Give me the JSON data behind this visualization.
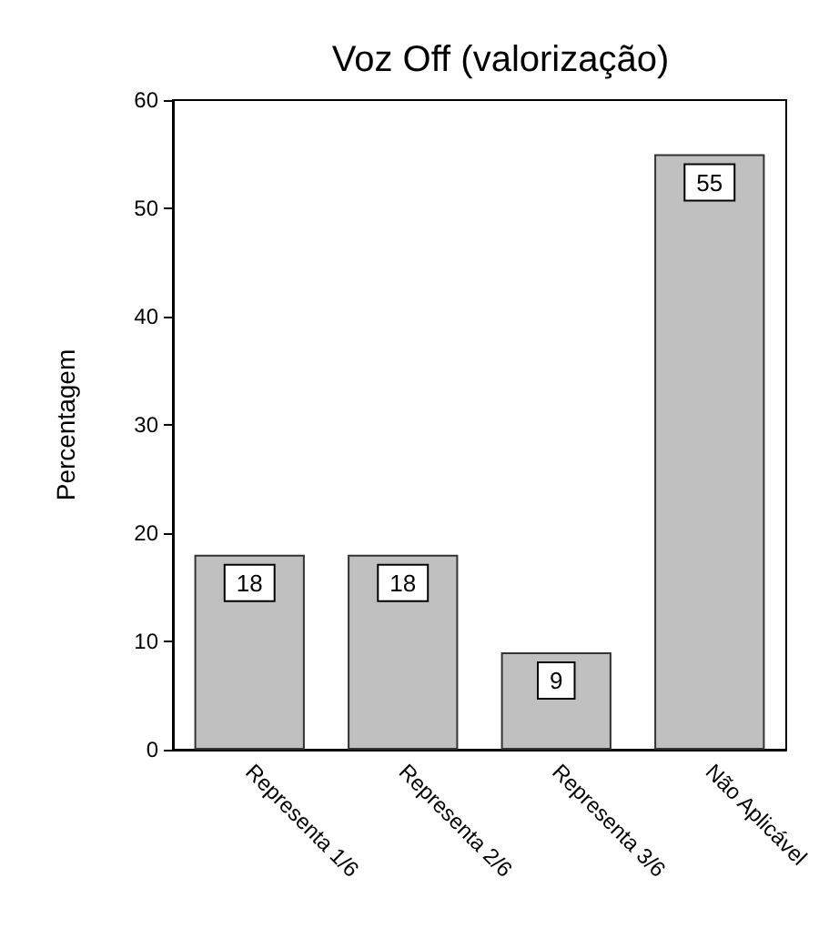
{
  "chart_data": {
    "type": "bar",
    "title": "Voz Off (valorização)",
    "ylabel": "Percentagem",
    "categories": [
      "Representa 1/6",
      "Representa 2/6",
      "Representa 3/6",
      "Não Aplicável"
    ],
    "values": [
      18,
      18,
      9,
      55
    ],
    "color": "#c0c0c0",
    "data_labels": true,
    "ylim": [
      0,
      60
    ],
    "yticks": [
      0,
      10,
      20,
      30,
      40,
      50,
      60
    ],
    "grid": false
  }
}
